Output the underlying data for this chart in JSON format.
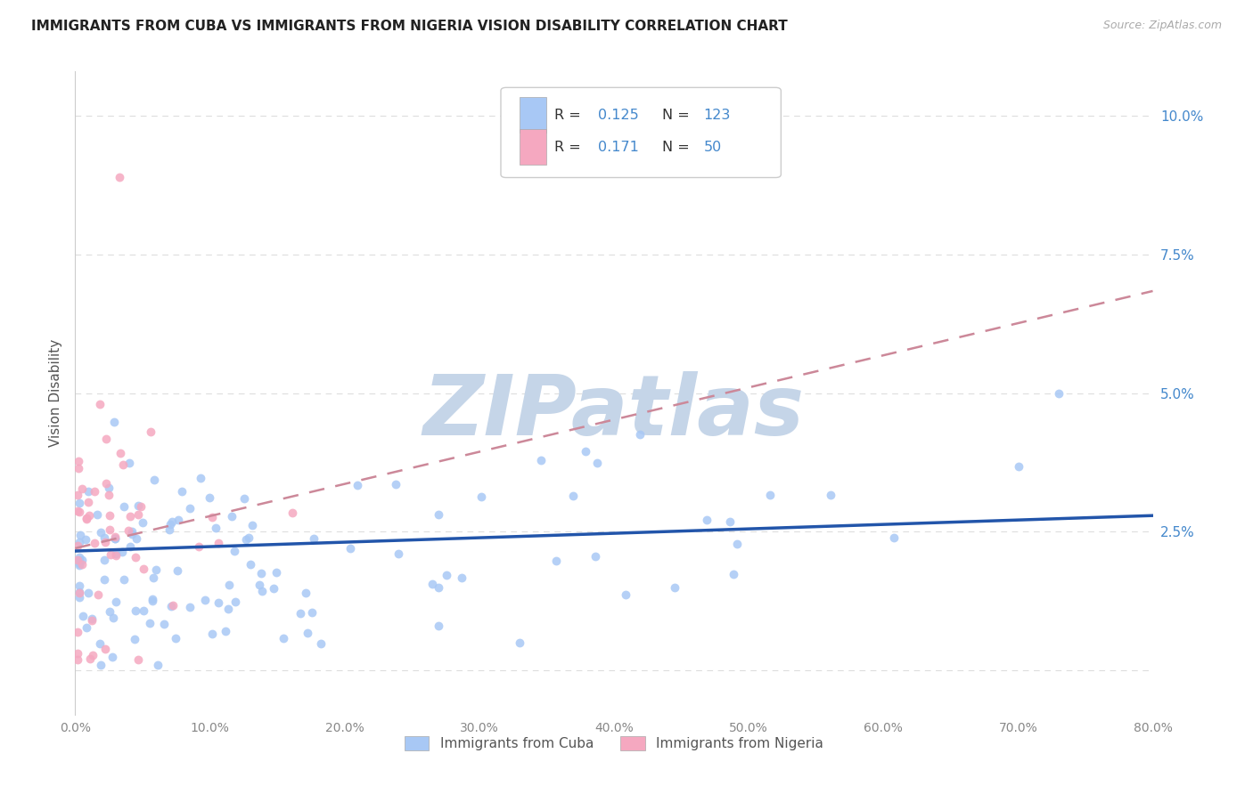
{
  "title": "IMMIGRANTS FROM CUBA VS IMMIGRANTS FROM NIGERIA VISION DISABILITY CORRELATION CHART",
  "source": "Source: ZipAtlas.com",
  "ylabel": "Vision Disability",
  "xlim": [
    0.0,
    0.8
  ],
  "ylim": [
    -0.008,
    0.108
  ],
  "cuba_R": 0.125,
  "cuba_N": 123,
  "nigeria_R": 0.171,
  "nigeria_N": 50,
  "cuba_color": "#a8c8f5",
  "nigeria_color": "#f5a8c0",
  "cuba_line_color": "#2255aa",
  "nigeria_line_color": "#cc8899",
  "watermark_text": "ZIPatlas",
  "watermark_color": "#c5d5e8",
  "background_color": "#ffffff",
  "grid_color": "#dddddd",
  "grid_linestyle": "--",
  "legend_label_cuba": "Immigrants from Cuba",
  "legend_label_nigeria": "Immigrants from Nigeria",
  "title_color": "#222222",
  "source_color": "#aaaaaa",
  "label_color": "#555555",
  "tick_color_y": "#4488cc",
  "tick_color_x": "#888888",
  "R_label_color": "#333333",
  "R_value_color": "#4488cc",
  "N_label_color": "#333333",
  "N_value_color": "#4488cc",
  "ytick_positions": [
    0.0,
    0.025,
    0.05,
    0.075,
    0.1
  ],
  "ytick_labels": [
    "",
    "2.5%",
    "5.0%",
    "7.5%",
    "10.0%"
  ],
  "xtick_positions": [
    0.0,
    0.1,
    0.2,
    0.3,
    0.4,
    0.5,
    0.6,
    0.7,
    0.8
  ],
  "xtick_labels": [
    "0.0%",
    "10.0%",
    "20.0%",
    "30.0%",
    "40.0%",
    "50.0%",
    "60.0%",
    "70.0%",
    "80.0%"
  ]
}
